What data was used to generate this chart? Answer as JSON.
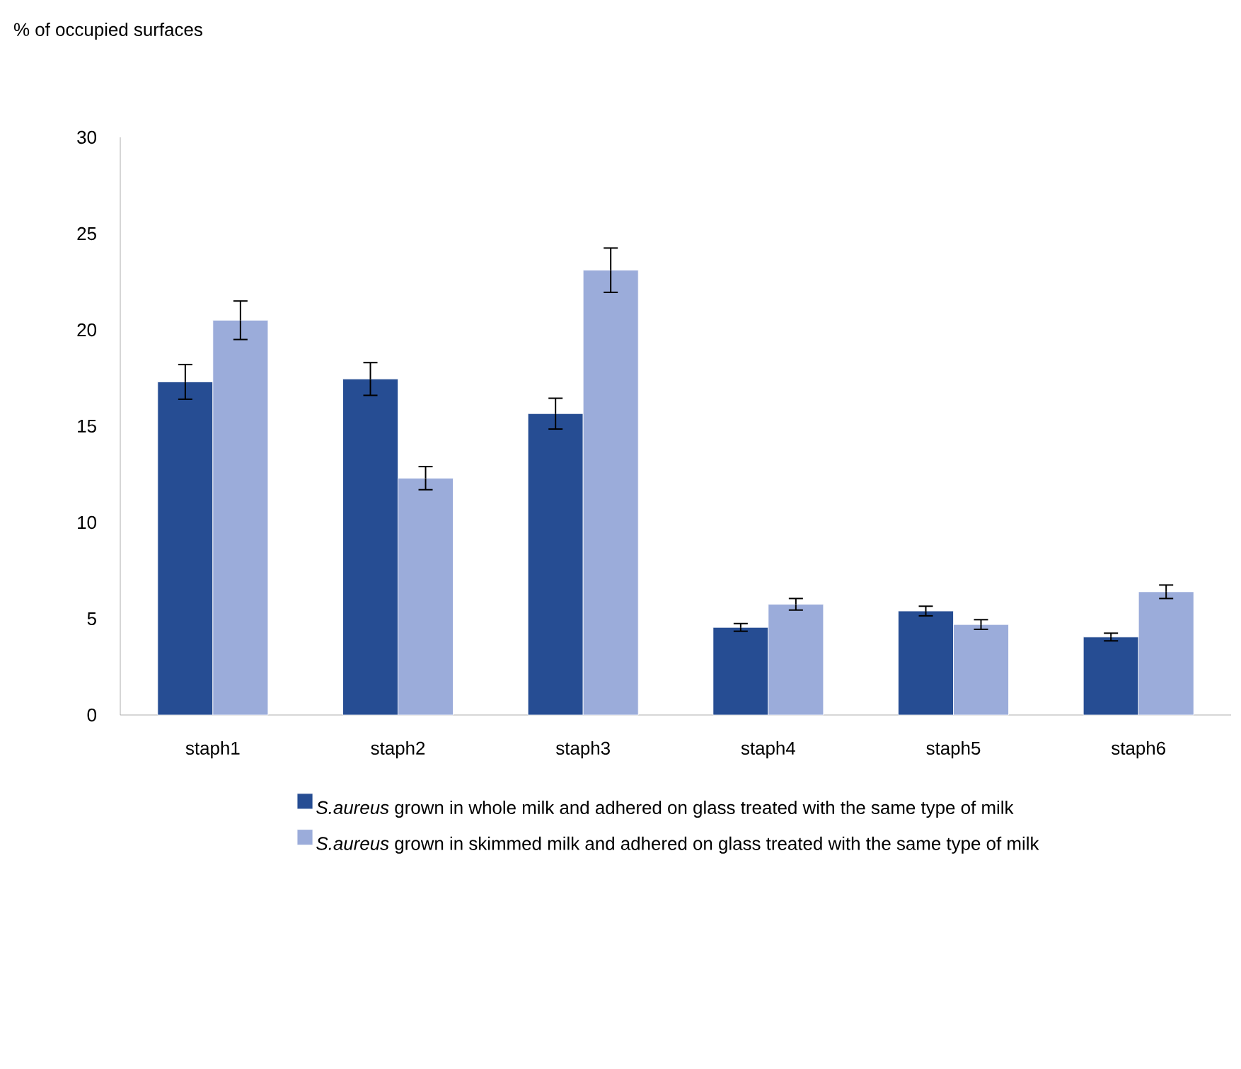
{
  "chart_data": {
    "type": "bar",
    "ylabel": "% of occupied surfaces",
    "categories": [
      "staph1",
      "staph2",
      "staph3",
      "staph4",
      "staph5",
      "staph6"
    ],
    "ylim": [
      0,
      30
    ],
    "yticks": [
      0,
      5,
      10,
      15,
      20,
      25,
      30
    ],
    "legend": "bottom",
    "series": [
      {
        "name": "*S.aureus* grown in whole milk and adhered on glass treated with the same type of milk",
        "color": "#264d93",
        "values": [
          17.3,
          17.45,
          15.65,
          4.55,
          5.4,
          4.05
        ],
        "errors": [
          0.9,
          0.85,
          0.8,
          0.2,
          0.25,
          0.2
        ]
      },
      {
        "name": "*S.aureus* grown in skimmed milk and adhered on glass treated with the same type of milk",
        "color": "#9bacda",
        "values": [
          20.5,
          12.3,
          23.1,
          5.75,
          4.7,
          6.4
        ],
        "errors": [
          1.0,
          0.6,
          1.15,
          0.3,
          0.25,
          0.35
        ]
      }
    ]
  }
}
